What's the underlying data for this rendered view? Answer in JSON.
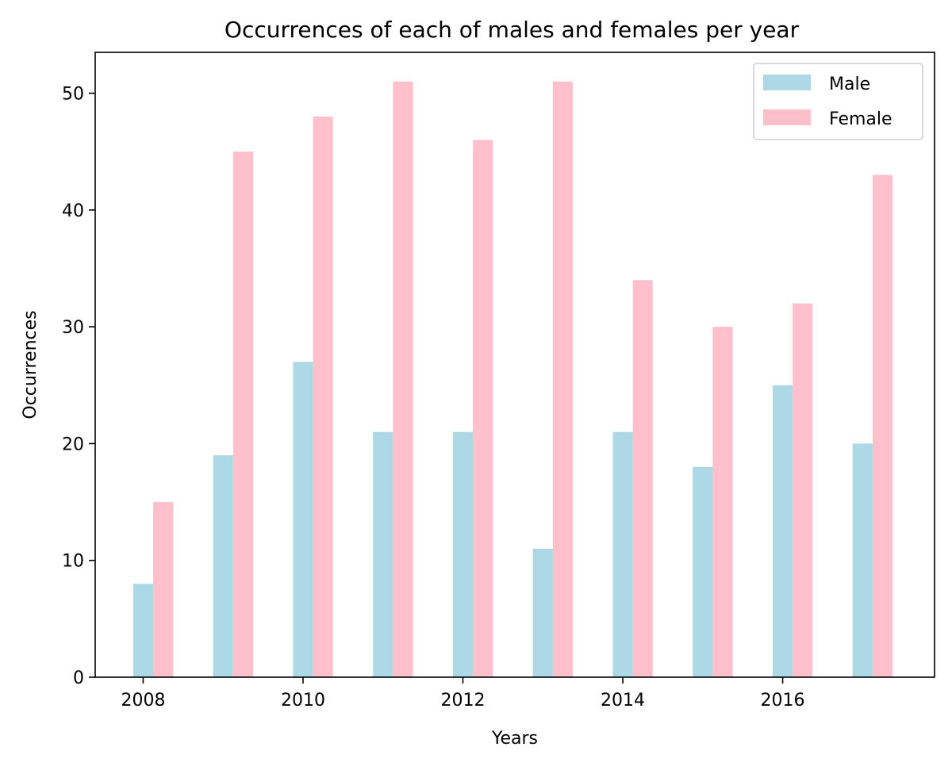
{
  "chart_data": {
    "type": "bar",
    "title": "Occurrences of each of males and females per year",
    "xlabel": "Years",
    "ylabel": "Occurrences",
    "x": [
      2008,
      2009,
      2010,
      2011,
      2012,
      2013,
      2014,
      2015,
      2016,
      2017
    ],
    "x_ticks": [
      "2008",
      "2010",
      "2012",
      "2014",
      "2016"
    ],
    "y_ticks": [
      "0",
      "10",
      "20",
      "30",
      "40",
      "50"
    ],
    "ylim": [
      0,
      53.5
    ],
    "xlim": [
      2007.4,
      2017.9
    ],
    "grid": false,
    "legend_position": "top-right",
    "series": [
      {
        "name": "Male",
        "color": "#add8e6",
        "values": [
          8,
          19,
          27,
          21,
          21,
          11,
          21,
          18,
          25,
          20
        ]
      },
      {
        "name": "Female",
        "color": "#ffc0cb",
        "values": [
          15,
          45,
          48,
          51,
          46,
          51,
          34,
          30,
          32,
          43
        ]
      }
    ]
  }
}
